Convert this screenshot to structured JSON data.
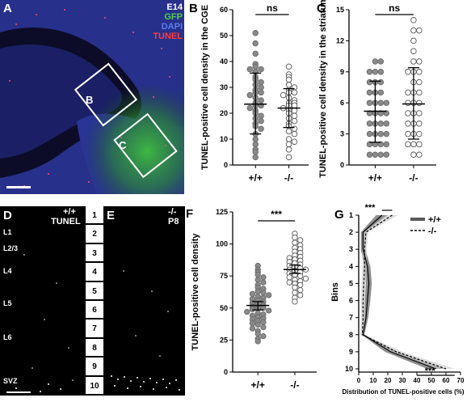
{
  "panelA": {
    "letter": "A",
    "legend": [
      {
        "text": "E14",
        "color": "#ffffff"
      },
      {
        "text": "GFP",
        "color": "#4dd24d"
      },
      {
        "text": "DAPI",
        "color": "#5a7cf0"
      },
      {
        "text": "TUNEL",
        "color": "#ff3b3b"
      }
    ],
    "box_b_label": "B",
    "box_c_label": "C"
  },
  "panelD": {
    "letter": "D",
    "genotype": "+/+",
    "stain": "TUNEL",
    "layers": [
      "L1",
      "L2/3",
      "L4",
      "L5",
      "L6",
      "SVZ"
    ]
  },
  "panelE": {
    "letter": "E",
    "genotype": "-/-",
    "age": "P8"
  },
  "bins_strip": [
    "1",
    "2",
    "3",
    "4",
    "5",
    "6",
    "7",
    "8",
    "9",
    "10"
  ],
  "chart_data": [
    {
      "id": "B",
      "type": "scatter",
      "letter": "B",
      "ylabel": "TUNEL-positive cell density in the CGE",
      "ylim": [
        0,
        60
      ],
      "yticks": [
        0,
        10,
        20,
        30,
        40,
        50,
        60
      ],
      "categories": [
        "+/+",
        "-/-"
      ],
      "significance": "ns",
      "series": [
        {
          "group": "+/+",
          "filled": true,
          "mean": 23.5,
          "sd_low": 12,
          "sd_high": 35.5,
          "values": [
            51,
            47,
            43,
            39,
            38,
            37,
            37,
            36,
            34,
            33,
            32,
            31,
            30,
            29,
            28,
            28,
            27,
            26,
            25,
            24,
            23,
            23,
            22,
            21,
            20,
            19,
            18,
            17,
            16,
            15,
            14,
            12,
            10,
            8,
            6,
            5,
            3
          ]
        },
        {
          "group": "-/-",
          "filled": false,
          "mean": 22,
          "sd_low": 14.5,
          "sd_high": 29.5,
          "values": [
            38,
            35,
            34,
            33,
            31,
            30,
            29,
            28,
            28,
            27,
            26,
            25,
            24,
            24,
            23,
            23,
            22,
            21,
            21,
            20,
            19,
            18,
            17,
            16,
            15,
            14,
            13,
            12,
            10,
            9,
            8,
            6,
            3
          ]
        }
      ]
    },
    {
      "id": "C",
      "type": "scatter",
      "letter": "C",
      "ylabel": "TUNEL-positive cell density in the striatum",
      "ylim": [
        0,
        15
      ],
      "yticks": [
        0,
        3,
        6,
        9,
        12,
        15
      ],
      "categories": [
        "+/+",
        "-/-"
      ],
      "significance": "ns",
      "series": [
        {
          "group": "+/+",
          "filled": true,
          "mean": 5.2,
          "sd_low": 2.2,
          "sd_high": 8.1,
          "values": [
            10,
            10,
            9,
            9,
            9,
            8,
            8,
            8,
            7,
            7,
            7,
            6,
            6,
            6,
            6,
            5,
            5,
            5,
            5,
            4,
            4,
            4,
            4,
            3,
            3,
            3,
            3,
            2,
            2,
            2,
            2,
            1,
            1,
            1,
            1
          ]
        },
        {
          "group": "-/-",
          "filled": false,
          "mean": 5.9,
          "sd_low": 2.5,
          "sd_high": 9.4,
          "values": [
            14,
            13,
            13,
            12,
            11,
            10,
            10,
            9,
            9,
            9,
            8,
            8,
            7,
            7,
            7,
            6,
            6,
            6,
            5,
            5,
            5,
            4,
            4,
            4,
            3,
            3,
            3,
            2,
            2,
            2,
            1,
            1
          ]
        }
      ]
    },
    {
      "id": "F",
      "type": "scatter",
      "letter": "F",
      "ylabel": "TUNEL-positive cell density",
      "ylim": [
        0,
        125
      ],
      "yticks": [
        0,
        25,
        50,
        75,
        100,
        125
      ],
      "categories": [
        "+/+",
        "-/-"
      ],
      "significance": "***",
      "series": [
        {
          "group": "+/+",
          "filled": true,
          "mean": 52,
          "sd_low": 48.5,
          "sd_high": 55,
          "values": [
            83,
            80,
            78,
            76,
            74,
            72,
            70,
            68,
            66,
            65,
            63,
            62,
            61,
            60,
            59,
            58,
            57,
            56,
            55,
            54,
            53,
            52,
            51,
            50,
            50,
            49,
            48,
            47,
            46,
            45,
            44,
            43,
            42,
            41,
            40,
            39,
            38,
            37,
            35,
            34,
            32,
            30,
            28,
            26,
            24
          ]
        },
        {
          "group": "-/-",
          "filled": false,
          "mean": 80,
          "sd_low": 77,
          "sd_high": 83.5,
          "values": [
            108,
            105,
            103,
            101,
            99,
            97,
            96,
            94,
            93,
            91,
            90,
            89,
            88,
            87,
            86,
            85,
            84,
            83,
            82,
            81,
            80,
            80,
            79,
            78,
            77,
            76,
            75,
            74,
            73,
            72,
            71,
            70,
            69,
            68,
            66,
            64,
            62,
            60,
            58,
            55
          ]
        }
      ]
    },
    {
      "id": "G",
      "type": "line",
      "letter": "G",
      "xlabel": "Distribution of TUNEL-positive cells (%)",
      "ylabel": "Bins",
      "xlim": [
        0,
        70
      ],
      "xticks": [
        0,
        10,
        20,
        30,
        40,
        50,
        60,
        70
      ],
      "ylim": [
        1,
        10
      ],
      "yticks": [
        1,
        2,
        3,
        4,
        5,
        6,
        7,
        8,
        9,
        10
      ],
      "significance_top": "***",
      "significance_bottom": "***",
      "legend": [
        {
          "label": "+/+",
          "style": "solid"
        },
        {
          "label": "-/-",
          "style": "dashed"
        }
      ],
      "series": [
        {
          "name": "+/+",
          "style": "solid",
          "x": [
            16,
            3,
            3,
            6,
            7,
            6,
            5,
            3,
            22,
            53
          ],
          "band": [
            [
              12,
              20
            ],
            [
              1.5,
              4.5
            ],
            [
              1.5,
              4.5
            ],
            [
              4,
              8
            ],
            [
              5,
              9
            ],
            [
              4,
              8
            ],
            [
              3.5,
              6.5
            ],
            [
              2,
              4
            ],
            [
              18,
              26
            ],
            [
              47,
              59
            ]
          ]
        },
        {
          "name": "-/-",
          "style": "dashed",
          "x": [
            23,
            5,
            4,
            4,
            3.5,
            3,
            3,
            2.5,
            26,
            60
          ],
          "band": [
            [
              19,
              27
            ],
            [
              3.5,
              6.5
            ],
            [
              2.5,
              5.5
            ],
            [
              2.5,
              5.5
            ],
            [
              2,
              5
            ],
            [
              1.5,
              4.5
            ],
            [
              1.5,
              4.5
            ],
            [
              1,
              4
            ],
            [
              22,
              30
            ],
            [
              54,
              66
            ]
          ]
        }
      ]
    }
  ]
}
